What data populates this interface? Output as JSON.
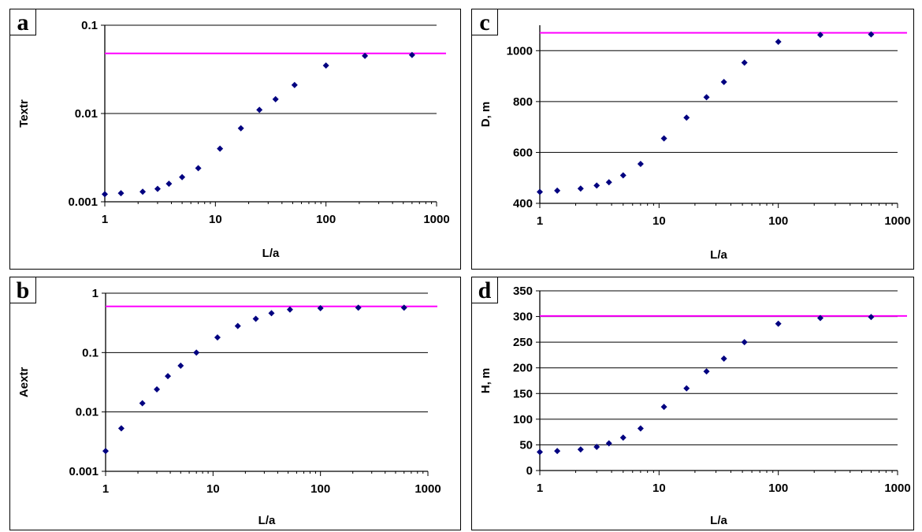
{
  "chart_data": [
    {
      "panel_letter": "a",
      "type": "scatter",
      "xlabel": "L/a",
      "ylabel": "Textr",
      "xscale": "log",
      "yscale": "log",
      "xlim": [
        1,
        1000
      ],
      "ylim": [
        0.001,
        0.1
      ],
      "x_ticks": [
        "1",
        "10",
        "100",
        "1000"
      ],
      "y_ticks": [
        "0.001",
        "0.01",
        "0.1"
      ],
      "grid": "horizontal",
      "reference_line": 0.048,
      "reference_color": "#ff00ff",
      "marker_color": "#000080",
      "x": [
        1,
        1.4,
        2.2,
        3,
        3.8,
        5,
        7,
        11,
        17,
        25,
        35,
        52,
        100,
        225,
        600
      ],
      "y": [
        0.00122,
        0.00125,
        0.0013,
        0.0014,
        0.0016,
        0.0019,
        0.0024,
        0.004,
        0.0068,
        0.011,
        0.0145,
        0.021,
        0.035,
        0.045,
        0.046
      ]
    },
    {
      "panel_letter": "c",
      "type": "scatter",
      "xlabel": "L/a",
      "ylabel": "D, m",
      "xscale": "log",
      "yscale": "linear",
      "xlim": [
        1,
        1000
      ],
      "ylim": [
        400,
        1100
      ],
      "x_ticks": [
        "1",
        "10",
        "100",
        "1000"
      ],
      "y_ticks": [
        "400",
        "600",
        "800",
        "1000"
      ],
      "grid": "horizontal",
      "reference_line": 1070,
      "reference_color": "#ff00ff",
      "marker_color": "#000080",
      "x": [
        1,
        1.4,
        2.2,
        3,
        3.8,
        5,
        7,
        11,
        17,
        25,
        35,
        52,
        100,
        225,
        600
      ],
      "y": [
        445,
        450,
        458,
        470,
        483,
        510,
        555,
        655,
        737,
        817,
        877,
        953,
        1035,
        1062,
        1064
      ]
    },
    {
      "panel_letter": "b",
      "type": "scatter",
      "xlabel": "L/a",
      "ylabel": "Aextr",
      "xscale": "log",
      "yscale": "log",
      "xlim": [
        1,
        1000
      ],
      "ylim": [
        0.001,
        1
      ],
      "x_ticks": [
        "1",
        "10",
        "100",
        "1000"
      ],
      "y_ticks": [
        "0.001",
        "0.01",
        "0.1",
        "1"
      ],
      "grid": "horizontal",
      "reference_line": 0.6,
      "reference_color": "#ff00ff",
      "marker_color": "#000080",
      "x": [
        1,
        1.4,
        2.2,
        3,
        3.8,
        5,
        7,
        11,
        17,
        25,
        35,
        52,
        100,
        225,
        600
      ],
      "y": [
        0.0022,
        0.0053,
        0.014,
        0.024,
        0.04,
        0.06,
        0.1,
        0.18,
        0.28,
        0.37,
        0.46,
        0.53,
        0.56,
        0.57,
        0.57
      ]
    },
    {
      "panel_letter": "d",
      "type": "scatter",
      "xlabel": "L/a",
      "ylabel": "H, m",
      "xscale": "log",
      "yscale": "linear",
      "xlim": [
        1,
        1000
      ],
      "ylim": [
        0,
        350
      ],
      "x_ticks": [
        "1",
        "10",
        "100",
        "1000"
      ],
      "y_ticks": [
        "0",
        "50",
        "100",
        "150",
        "200",
        "250",
        "300",
        "350"
      ],
      "grid": "horizontal",
      "reference_line": 301,
      "reference_color": "#ff00ff",
      "marker_color": "#000080",
      "x": [
        1,
        1.4,
        2.2,
        3,
        3.8,
        5,
        7,
        11,
        17,
        25,
        35,
        52,
        100,
        225,
        600
      ],
      "y": [
        36,
        38,
        41,
        46,
        53,
        64,
        82,
        124,
        160,
        193,
        218,
        250,
        286,
        297,
        299
      ]
    }
  ]
}
